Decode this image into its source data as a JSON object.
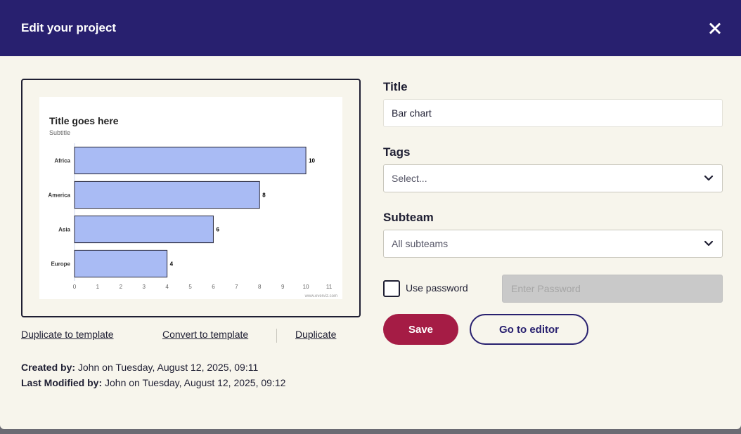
{
  "dialog": {
    "title": "Edit your project",
    "close_icon": "close-icon"
  },
  "chart_data": {
    "type": "bar",
    "orientation": "horizontal",
    "title": "Title goes here",
    "subtitle": "Subtitle",
    "categories": [
      "Africa",
      "America",
      "Asia",
      "Europe"
    ],
    "values": [
      10,
      8,
      6,
      4
    ],
    "xlim": [
      0,
      11
    ],
    "xticks": [
      "0",
      "1",
      "2",
      "3",
      "4",
      "5",
      "6",
      "7",
      "8",
      "9",
      "10",
      "11"
    ],
    "credit": "www.everviz.com",
    "bar_color": "#a9bbf4",
    "bar_border_color": "#2b2b3d"
  },
  "links": {
    "duplicate_to_template": "Duplicate to template",
    "convert_to_template": "Convert to template",
    "duplicate": "Duplicate"
  },
  "meta": {
    "created_label": "Created by:",
    "created_value": "John on Tuesday, August 12, 2025, 09:11",
    "modified_label": "Last Modified by:",
    "modified_value": "John on Tuesday, August 12, 2025, 09:12"
  },
  "form": {
    "title_label": "Title",
    "title_value": "Bar chart",
    "tags_label": "Tags",
    "tags_placeholder": "Select...",
    "subteam_label": "Subteam",
    "subteam_value": "All subteams",
    "use_password_label": "Use password",
    "password_placeholder": "Enter Password"
  },
  "buttons": {
    "save": "Save",
    "go_to_editor": "Go to editor"
  },
  "colors": {
    "header": "#28206f",
    "background": "#f7f5ec",
    "save": "#a51c45"
  }
}
